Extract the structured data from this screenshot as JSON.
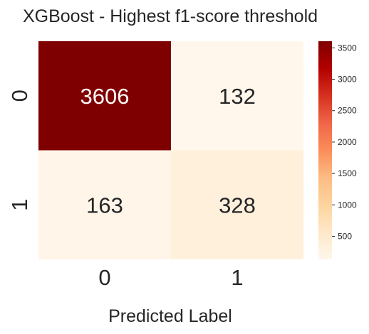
{
  "chart_data": {
    "type": "heatmap",
    "title": "XGBoost - Highest f1-score threshold",
    "xlabel": "Predicted Label",
    "ylabel": "",
    "x_categories": [
      "0",
      "1"
    ],
    "y_categories": [
      "0",
      "1"
    ],
    "matrix": [
      [
        3606,
        132
      ],
      [
        163,
        328
      ]
    ],
    "colormap": "OrRd",
    "colorbar": {
      "ticks": [
        500,
        1000,
        1500,
        2000,
        2500,
        3000,
        3500
      ],
      "range": [
        132,
        3606
      ]
    },
    "colors": {
      "high": "#7f0000",
      "low": "#fff7ec"
    }
  }
}
